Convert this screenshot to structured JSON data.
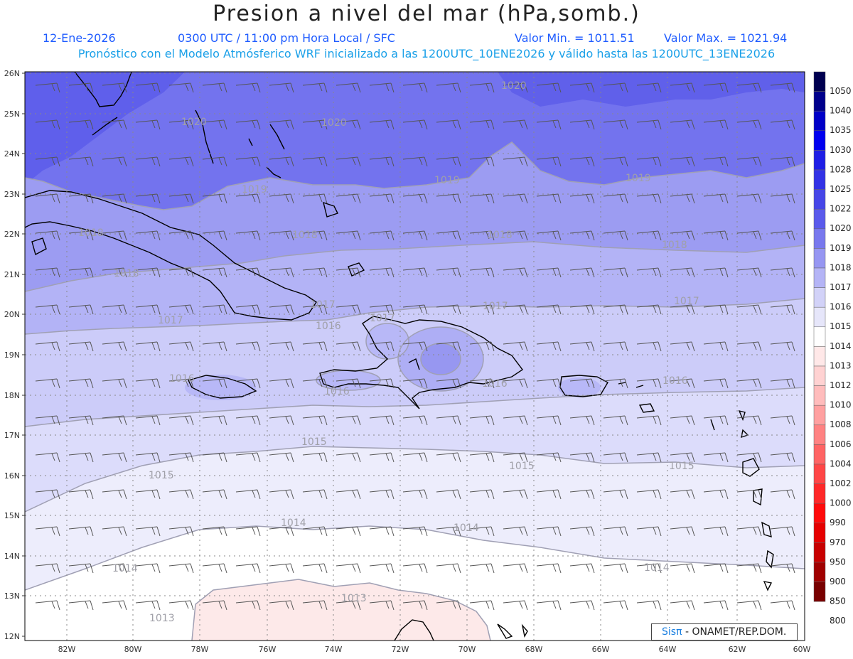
{
  "title": "Presion a nivel del mar (hPa,somb.)",
  "subtitle": {
    "date": "12-Ene-2026",
    "time": "0300 UTC / 11:00 pm Hora Local / SFC",
    "min_label": "Valor Min. = 1011.51",
    "max_label": "Valor Max. = 1021.94",
    "model_line": "Pronóstico con el Modelo Atmósferico WRF inicializado a las 1200UTC_10ENE2026 y válido hasta las  1200UTC_13ENE2026"
  },
  "map": {
    "lat_labels": [
      "26N",
      "25N",
      "24N",
      "23N",
      "22N",
      "21N",
      "20N",
      "19N",
      "18N",
      "17N",
      "16N",
      "15N",
      "14N",
      "13N",
      "12N"
    ],
    "lon_labels": [
      "82W",
      "80W",
      "78W",
      "76W",
      "74W",
      "72W",
      "70W",
      "68W",
      "66W",
      "64W",
      "62W",
      "60W"
    ],
    "isobar_labels": [
      {
        "text": "1020"
      },
      {
        "text": "1020"
      },
      {
        "text": "1020"
      },
      {
        "text": "1019"
      },
      {
        "text": "1019"
      },
      {
        "text": "1019"
      },
      {
        "text": "1018"
      },
      {
        "text": "1018"
      },
      {
        "text": "1018"
      },
      {
        "text": "1018"
      },
      {
        "text": "1018"
      },
      {
        "text": "1017"
      },
      {
        "text": "1017"
      },
      {
        "text": "1017"
      },
      {
        "text": "1017"
      },
      {
        "text": "1017"
      },
      {
        "text": "1016"
      },
      {
        "text": "1016"
      },
      {
        "text": "1016"
      },
      {
        "text": "1016"
      },
      {
        "text": "1016"
      },
      {
        "text": "1015"
      },
      {
        "text": "1015"
      },
      {
        "text": "1015"
      },
      {
        "text": "1015"
      },
      {
        "text": "1014"
      },
      {
        "text": "1014"
      },
      {
        "text": "1014"
      },
      {
        "text": "1014"
      },
      {
        "text": "1013"
      },
      {
        "text": "1013"
      }
    ]
  },
  "colorbar": {
    "levels": [
      "1050",
      "1040",
      "1035",
      "1030",
      "1028",
      "1025",
      "1022",
      "1020",
      "1019",
      "1018",
      "1017",
      "1016",
      "1015",
      "1014",
      "1013",
      "1012",
      "1010",
      "1008",
      "1006",
      "1004",
      "1002",
      "1000",
      "990",
      "970",
      "950",
      "900",
      "850",
      "800"
    ],
    "colors": [
      "#000050",
      "#00008c",
      "#0000c8",
      "#0000f0",
      "#1e1ee6",
      "#3232e6",
      "#4646e8",
      "#5a5aec",
      "#7878ee",
      "#9696f2",
      "#b4b4f6",
      "#d2d2f8",
      "#e6e6fa",
      "#ffffff",
      "#ffe8e8",
      "#ffd2d2",
      "#ffbcbc",
      "#ffa0a0",
      "#ff8282",
      "#ff6464",
      "#ff4646",
      "#ff2828",
      "#ff0a0a",
      "#e60000",
      "#c80000",
      "#a00000",
      "#780000"
    ]
  },
  "credit": {
    "sis": "Sisπ",
    "org": "- ONAMET/REP.DOM."
  }
}
